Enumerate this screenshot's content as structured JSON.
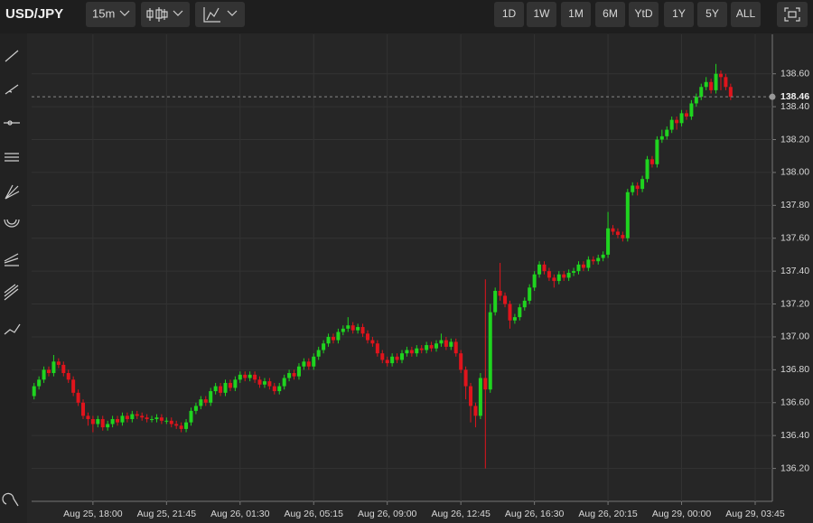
{
  "toolbar": {
    "symbol": "USD/JPY",
    "interval": "15m",
    "ranges": [
      "1D",
      "1W",
      "1M",
      "6M",
      "YtD",
      "1Y",
      "5Y",
      "ALL"
    ]
  },
  "chart_data": {
    "type": "candlestick",
    "categories": [
      null,
      null,
      null,
      null,
      null,
      null,
      null,
      null,
      null,
      null,
      null,
      null,
      "Aug 25, 18:00",
      null,
      null,
      null,
      null,
      null,
      null,
      null,
      null,
      null,
      null,
      null,
      null,
      null,
      null,
      "Aug 25, 21:45",
      null,
      null,
      null,
      null,
      null,
      null,
      null,
      null,
      null,
      null,
      null,
      null,
      null,
      null,
      "Aug 26, 01:30",
      null,
      null,
      null,
      null,
      null,
      null,
      null,
      null,
      null,
      null,
      null,
      null,
      null,
      null,
      "Aug 26, 05:15",
      null,
      null,
      null,
      null,
      null,
      null,
      null,
      null,
      null,
      null,
      null,
      null,
      null,
      null,
      "Aug 26, 09:00",
      null,
      null,
      null,
      null,
      null,
      null,
      null,
      null,
      null,
      null,
      null,
      null,
      null,
      null,
      "Aug 26, 12:45",
      null,
      null,
      null,
      null,
      null,
      null,
      null,
      null,
      null,
      null,
      null,
      null,
      null,
      null,
      "Aug 26, 16:30",
      null,
      null,
      null,
      null,
      null,
      null,
      null,
      null,
      null,
      null,
      null,
      null,
      null,
      null,
      "Aug 26, 20:15",
      null,
      null,
      null,
      null,
      null,
      null,
      null,
      null,
      null,
      null,
      null,
      null,
      null,
      null,
      "Aug 29, 00:00",
      null,
      null,
      null,
      null,
      null,
      null,
      null,
      null,
      null,
      null,
      null,
      null,
      null,
      null,
      "Aug 29, 03:45",
      null,
      null,
      null
    ],
    "series": {
      "open": [
        136.64,
        136.7,
        136.74,
        136.8,
        136.78,
        136.85,
        136.83,
        136.78,
        136.74,
        136.66,
        136.6,
        136.52,
        136.5,
        136.47,
        136.5,
        136.45,
        136.47,
        136.5,
        136.48,
        136.52,
        136.5,
        136.53,
        136.52,
        136.51,
        136.5,
        136.5,
        136.51,
        136.49,
        136.49,
        136.47,
        136.46,
        136.44,
        136.48,
        136.55,
        136.58,
        136.62,
        136.6,
        136.67,
        136.7,
        136.66,
        136.72,
        136.69,
        136.74,
        136.77,
        136.75,
        136.77,
        136.74,
        136.71,
        136.73,
        136.7,
        136.67,
        136.7,
        136.75,
        136.78,
        136.76,
        136.82,
        136.85,
        136.82,
        136.88,
        136.92,
        136.96,
        137.0,
        136.98,
        137.03,
        137.05,
        137.07,
        137.04,
        137.06,
        137.02,
        136.98,
        136.96,
        136.9,
        136.86,
        136.84,
        136.88,
        136.86,
        136.9,
        136.92,
        136.9,
        136.93,
        136.92,
        136.95,
        136.93,
        136.96,
        136.98,
        136.94,
        136.97,
        136.9,
        136.8,
        136.7,
        136.58,
        136.52,
        136.75,
        136.68,
        137.15,
        137.28,
        137.25,
        137.2,
        137.1,
        137.12,
        137.18,
        137.22,
        137.3,
        137.38,
        137.44,
        137.4,
        137.36,
        137.34,
        137.38,
        137.36,
        137.39,
        137.4,
        137.44,
        137.42,
        137.47,
        137.46,
        137.48,
        137.5,
        137.66,
        137.64,
        137.62,
        137.6,
        137.88,
        137.92,
        137.9,
        137.96,
        138.08,
        138.05,
        138.2,
        138.22,
        138.26,
        138.32,
        138.3,
        138.36,
        138.34,
        138.42,
        138.46,
        138.52,
        138.55,
        138.5,
        138.6,
        138.58,
        138.52,
        null,
        null,
        null,
        null,
        null,
        null,
        null,
        null
      ],
      "high": [
        136.72,
        136.76,
        136.82,
        136.82,
        136.89,
        136.87,
        136.85,
        136.8,
        136.76,
        136.68,
        136.62,
        136.54,
        136.52,
        136.52,
        136.52,
        136.49,
        136.52,
        136.52,
        136.54,
        136.54,
        136.55,
        136.55,
        136.54,
        136.53,
        136.52,
        136.53,
        136.53,
        136.51,
        136.51,
        136.49,
        136.48,
        136.5,
        136.57,
        136.6,
        136.64,
        136.64,
        136.69,
        136.72,
        136.72,
        136.74,
        136.74,
        136.76,
        136.79,
        136.79,
        136.79,
        136.79,
        136.76,
        136.75,
        136.75,
        136.72,
        136.72,
        136.77,
        136.8,
        136.8,
        136.84,
        136.87,
        136.87,
        136.9,
        136.94,
        136.98,
        137.02,
        137.02,
        137.05,
        137.07,
        137.12,
        137.09,
        137.08,
        137.08,
        137.04,
        137.0,
        136.98,
        136.92,
        136.88,
        136.9,
        136.9,
        136.92,
        136.94,
        136.94,
        136.95,
        136.95,
        136.97,
        136.97,
        136.98,
        137.02,
        137.0,
        136.99,
        136.99,
        136.92,
        136.82,
        136.72,
        136.6,
        136.78,
        137.35,
        137.2,
        137.3,
        137.45,
        137.27,
        137.22,
        137.14,
        137.2,
        137.24,
        137.32,
        137.4,
        137.46,
        137.46,
        137.42,
        137.38,
        137.4,
        137.4,
        137.41,
        137.42,
        137.46,
        137.46,
        137.49,
        137.49,
        137.5,
        137.52,
        137.76,
        137.68,
        137.66,
        137.64,
        137.9,
        137.94,
        137.94,
        137.98,
        138.1,
        138.1,
        138.22,
        138.26,
        138.28,
        138.34,
        138.34,
        138.38,
        138.38,
        138.44,
        138.48,
        138.54,
        138.58,
        138.57,
        138.66,
        138.62,
        138.6,
        138.54,
        null,
        null,
        null,
        null,
        null,
        null,
        null,
        null
      ],
      "low": [
        136.62,
        136.68,
        136.72,
        136.76,
        136.76,
        136.81,
        136.76,
        136.72,
        136.64,
        136.58,
        136.5,
        136.46,
        136.42,
        136.45,
        136.43,
        136.43,
        136.45,
        136.46,
        136.46,
        136.48,
        136.48,
        136.5,
        136.49,
        136.48,
        136.48,
        136.48,
        136.47,
        136.47,
        136.45,
        136.44,
        136.42,
        136.42,
        136.46,
        136.53,
        136.56,
        136.58,
        136.58,
        136.65,
        136.64,
        136.64,
        136.67,
        136.67,
        136.72,
        136.73,
        136.73,
        136.72,
        136.69,
        136.69,
        136.68,
        136.65,
        136.65,
        136.68,
        136.73,
        136.74,
        136.74,
        136.8,
        136.8,
        136.8,
        136.86,
        136.9,
        136.94,
        136.96,
        136.96,
        137.01,
        137.03,
        137.02,
        137.02,
        137.0,
        136.96,
        136.94,
        136.88,
        136.84,
        136.82,
        136.82,
        136.84,
        136.84,
        136.88,
        136.88,
        136.88,
        136.9,
        136.9,
        136.91,
        136.91,
        136.94,
        136.92,
        136.92,
        136.88,
        136.78,
        136.62,
        136.48,
        136.45,
        136.5,
        136.2,
        136.66,
        137.13,
        137.22,
        137.18,
        137.05,
        137.08,
        137.1,
        137.16,
        137.2,
        137.28,
        137.36,
        137.38,
        137.34,
        137.3,
        137.32,
        137.34,
        137.34,
        137.37,
        137.38,
        137.4,
        137.4,
        137.44,
        137.44,
        137.46,
        137.48,
        137.62,
        137.6,
        137.58,
        137.58,
        137.86,
        137.86,
        137.88,
        137.94,
        138.03,
        138.03,
        138.18,
        138.2,
        138.24,
        138.26,
        138.28,
        138.32,
        138.32,
        138.4,
        138.44,
        138.5,
        138.48,
        138.48,
        138.5,
        138.5,
        138.44,
        null,
        null,
        null,
        null,
        null,
        null,
        null,
        null
      ],
      "close": [
        136.7,
        136.74,
        136.8,
        136.78,
        136.85,
        136.83,
        136.78,
        136.74,
        136.66,
        136.6,
        136.52,
        136.5,
        136.47,
        136.5,
        136.45,
        136.47,
        136.5,
        136.48,
        136.52,
        136.5,
        136.53,
        136.52,
        136.51,
        136.5,
        136.5,
        136.51,
        136.49,
        136.49,
        136.47,
        136.46,
        136.44,
        136.48,
        136.55,
        136.58,
        136.62,
        136.6,
        136.67,
        136.7,
        136.66,
        136.72,
        136.69,
        136.74,
        136.77,
        136.75,
        136.77,
        136.74,
        136.71,
        136.73,
        136.7,
        136.67,
        136.7,
        136.75,
        136.78,
        136.76,
        136.82,
        136.85,
        136.82,
        136.88,
        136.92,
        136.96,
        137.0,
        136.98,
        137.03,
        137.05,
        137.07,
        137.04,
        137.06,
        137.02,
        136.98,
        136.96,
        136.9,
        136.86,
        136.84,
        136.88,
        136.86,
        136.9,
        136.92,
        136.9,
        136.93,
        136.92,
        136.95,
        136.93,
        136.96,
        136.98,
        136.94,
        136.97,
        136.9,
        136.8,
        136.7,
        136.58,
        136.52,
        136.75,
        136.68,
        137.15,
        137.28,
        137.25,
        137.2,
        137.1,
        137.12,
        137.18,
        137.22,
        137.3,
        137.38,
        137.44,
        137.4,
        137.36,
        137.34,
        137.38,
        137.36,
        137.39,
        137.4,
        137.44,
        137.42,
        137.47,
        137.46,
        137.48,
        137.5,
        137.66,
        137.64,
        137.62,
        137.6,
        137.88,
        137.92,
        137.9,
        137.96,
        138.08,
        138.05,
        138.2,
        138.22,
        138.26,
        138.32,
        138.3,
        138.36,
        138.34,
        138.42,
        138.46,
        138.52,
        138.55,
        138.5,
        138.6,
        138.58,
        138.52,
        138.46,
        null,
        null,
        null,
        null,
        null,
        null,
        null,
        null
      ]
    },
    "up_color": "#1fd41f",
    "down_color": "#e0141c",
    "ylim": [
      136.0,
      138.84
    ],
    "yticks": [
      {
        "value": 136.2,
        "label": "136.20"
      },
      {
        "value": 136.4,
        "label": "136.40"
      },
      {
        "value": 136.6,
        "label": "136.60"
      },
      {
        "value": 136.8,
        "label": "136.80"
      },
      {
        "value": 137.0,
        "label": "137.00"
      },
      {
        "value": 137.2,
        "label": "137.20"
      },
      {
        "value": 137.4,
        "label": "137.40"
      },
      {
        "value": 137.6,
        "label": "137.60"
      },
      {
        "value": 137.8,
        "label": "137.80"
      },
      {
        "value": 138.0,
        "label": "138.00"
      },
      {
        "value": 138.2,
        "label": "138.20"
      },
      {
        "value": 138.4,
        "label": "138.40"
      },
      {
        "value": 138.6,
        "label": "138.60"
      }
    ],
    "grid": true,
    "last_price": 138.46
  }
}
